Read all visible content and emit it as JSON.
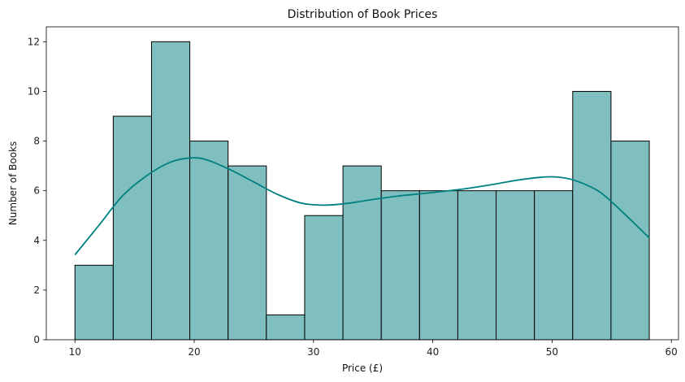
{
  "chart_data": {
    "type": "bar",
    "subtype": "histogram-with-kde",
    "title": "Distribution of Book Prices",
    "xlabel": "Price (£)",
    "ylabel": "Number of Books",
    "xlim": [
      7.6,
      60.6
    ],
    "ylim": [
      0,
      12.6
    ],
    "xticks": [
      10,
      20,
      30,
      40,
      50,
      60
    ],
    "yticks": [
      0,
      2,
      4,
      6,
      8,
      10,
      12
    ],
    "bin_edges": [
      10.0,
      13.21,
      16.42,
      19.63,
      22.84,
      26.05,
      29.26,
      32.47,
      35.68,
      38.89,
      42.1,
      45.31,
      48.52,
      51.73,
      54.94,
      58.15
    ],
    "counts": [
      3,
      9,
      12,
      8,
      7,
      1,
      5,
      7,
      6,
      6,
      6,
      6,
      6,
      10,
      8
    ],
    "kde": {
      "x": [
        10,
        12,
        14,
        16,
        18,
        19.7,
        21,
        23,
        25,
        27,
        29,
        31,
        33,
        35,
        37,
        39,
        41,
        43,
        45,
        47,
        49,
        50.5,
        52,
        54,
        56,
        58.15
      ],
      "y": [
        3.42,
        4.6,
        5.8,
        6.6,
        7.15,
        7.32,
        7.25,
        6.85,
        6.35,
        5.85,
        5.5,
        5.42,
        5.5,
        5.65,
        5.78,
        5.88,
        5.98,
        6.1,
        6.25,
        6.42,
        6.54,
        6.55,
        6.4,
        5.95,
        5.1,
        4.1
      ]
    },
    "bar_color": "#80bfbf",
    "line_color": "#008080",
    "grid": false,
    "legend": "none"
  }
}
